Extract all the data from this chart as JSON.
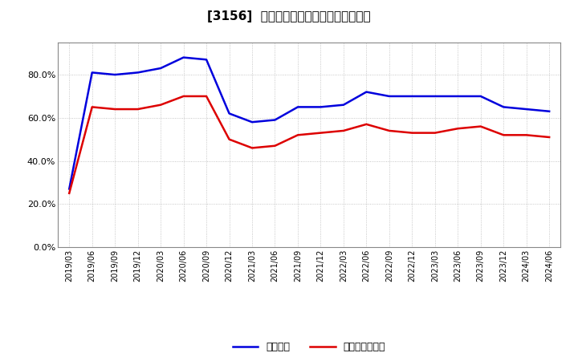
{
  "title": "[3156]  固定比率、固定長期適合率の推移",
  "legend_blue": "固定比率",
  "legend_red": "固定長期適合率",
  "background_color": "#ffffff",
  "plot_bg_color": "#ffffff",
  "grid_color": "#999999",
  "blue_color": "#0000dd",
  "red_color": "#dd0000",
  "ylim": [
    0.0,
    0.95
  ],
  "yticks": [
    0.0,
    0.2,
    0.4,
    0.6,
    0.8
  ],
  "x_labels": [
    "2019/03",
    "2019/06",
    "2019/09",
    "2019/12",
    "2020/03",
    "2020/06",
    "2020/09",
    "2020/12",
    "2021/03",
    "2021/06",
    "2021/09",
    "2021/12",
    "2022/03",
    "2022/06",
    "2022/09",
    "2022/12",
    "2023/03",
    "2023/06",
    "2023/09",
    "2023/12",
    "2024/03",
    "2024/06"
  ],
  "blue_values": [
    0.27,
    0.81,
    0.8,
    0.81,
    0.83,
    0.88,
    0.87,
    0.62,
    0.58,
    0.59,
    0.65,
    0.65,
    0.66,
    0.72,
    0.7,
    0.7,
    0.7,
    0.7,
    0.7,
    0.65,
    0.64,
    0.63
  ],
  "red_values": [
    0.25,
    0.65,
    0.64,
    0.64,
    0.66,
    0.7,
    0.7,
    0.5,
    0.46,
    0.47,
    0.52,
    0.53,
    0.54,
    0.57,
    0.54,
    0.53,
    0.53,
    0.55,
    0.56,
    0.52,
    0.52,
    0.51
  ]
}
